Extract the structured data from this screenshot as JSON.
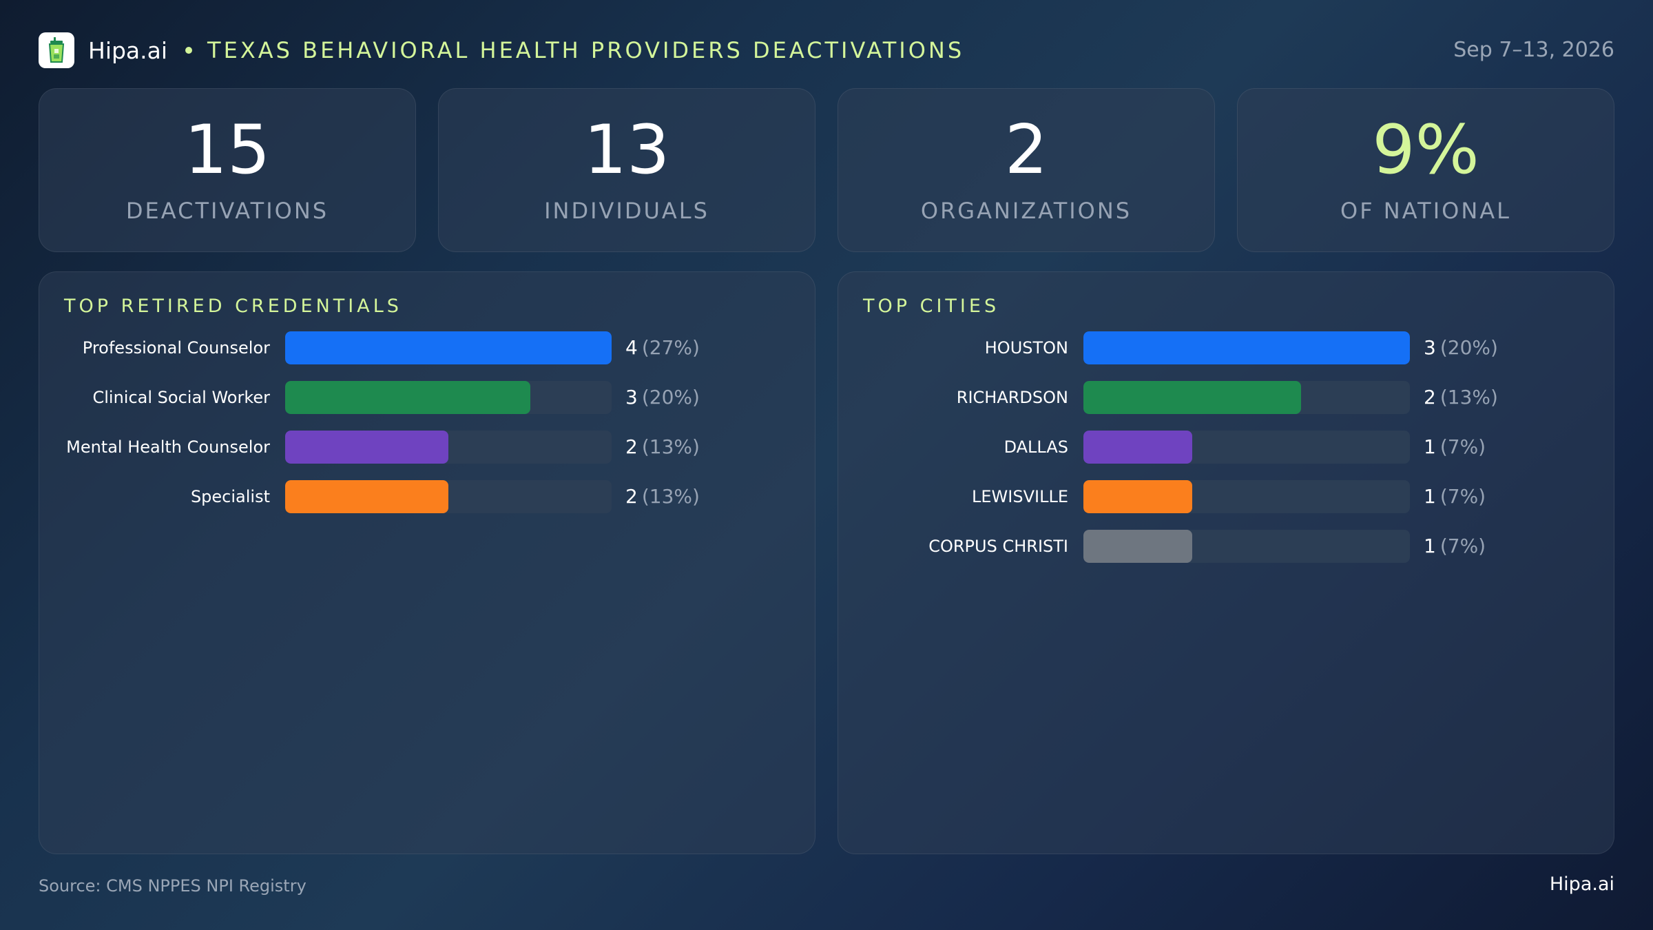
{
  "header": {
    "brand": "Hipa.ai",
    "title": "TEXAS BEHAVIORAL HEALTH PROVIDERS DEACTIVATIONS",
    "date_range": "Sep 7–13, 2026",
    "logo_icon": "cup-icon"
  },
  "stats": [
    {
      "value": "15",
      "label": "DEACTIVATIONS"
    },
    {
      "value": "13",
      "label": "INDIVIDUALS"
    },
    {
      "value": "2",
      "label": "ORGANIZATIONS"
    },
    {
      "value": "9%",
      "label": "OF NATIONAL"
    }
  ],
  "colors": {
    "accent": "#d4f59a",
    "blue": "#1570f6",
    "green": "#1e8a4f",
    "purple": "#6f43c0",
    "orange": "#fb7f1d",
    "gray": "#6e7680",
    "track": "#2c3e55"
  },
  "chart_data": [
    {
      "type": "bar",
      "orientation": "horizontal",
      "title": "TOP RETIRED CREDENTIALS",
      "categories": [
        "Professional Counselor",
        "Clinical Social Worker",
        "Mental Health Counselor",
        "Specialist"
      ],
      "values": [
        4,
        3,
        2,
        2
      ],
      "percent_labels": [
        "(27%)",
        "(20%)",
        "(13%)",
        "(13%)"
      ],
      "bar_colors": [
        "#1570f6",
        "#1e8a4f",
        "#6f43c0",
        "#fb7f1d"
      ],
      "xlim": [
        0,
        4
      ]
    },
    {
      "type": "bar",
      "orientation": "horizontal",
      "title": "TOP CITIES",
      "categories": [
        "HOUSTON",
        "RICHARDSON",
        "DALLAS",
        "LEWISVILLE",
        "CORPUS CHRISTI"
      ],
      "values": [
        3,
        2,
        1,
        1,
        1
      ],
      "percent_labels": [
        "(20%)",
        "(13%)",
        "(7%)",
        "(7%)",
        "(7%)"
      ],
      "bar_colors": [
        "#1570f6",
        "#1e8a4f",
        "#6f43c0",
        "#fb7f1d",
        "#6e7680"
      ],
      "xlim": [
        0,
        3
      ]
    }
  ],
  "footer": {
    "source": "Source: CMS NPPES NPI Registry",
    "brand": "Hipa.ai"
  }
}
